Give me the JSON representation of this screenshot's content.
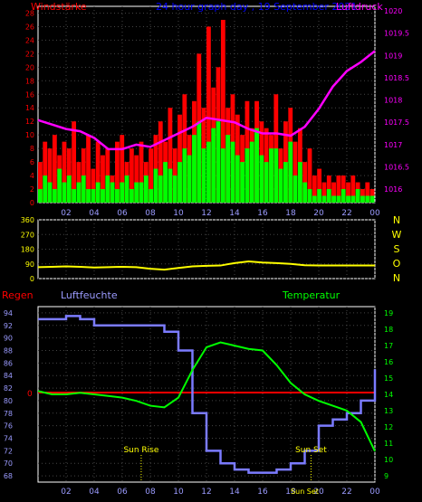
{
  "colors": {
    "bg": "#000000",
    "frame": "#ffffff",
    "grid": "#444444",
    "wind": "#ff0000",
    "gust": "#00ff00",
    "pressure": "#ff00ff",
    "direction": "#ffff00",
    "humidity": "#7b7bff",
    "temperature": "#00ff00",
    "rain": "#ff0000",
    "label_red": "#ff0000",
    "label_blue": "#0000ff",
    "label_green": "#00ff00",
    "label_magenta": "#ff00ff",
    "label_yellow": "#ffff00",
    "label_lightblue": "#9b9bff"
  },
  "chart_data": [
    {
      "type": "bar",
      "title": "24 hour graph day , 19 September 2021",
      "left_label": "Windstärke",
      "right_label": "Luftdruck",
      "x_ticks": [
        "02",
        "04",
        "06",
        "08",
        "10",
        "12",
        "14",
        "16",
        "18",
        "20",
        "22",
        "00"
      ],
      "y_left_ticks": [
        "0",
        "2",
        "4",
        "6",
        "8",
        "10",
        "12",
        "14",
        "16",
        "18",
        "20",
        "22",
        "24",
        "26",
        "28"
      ],
      "y_left_range": [
        0,
        29
      ],
      "y_right_ticks": [
        "1016",
        "1016.5",
        "1017",
        "1017.5",
        "1018",
        "1018.5",
        "1019",
        "1019.5",
        "1020"
      ],
      "y_right_range": [
        1015.7,
        1020.1
      ],
      "grid": true,
      "series": [
        {
          "type": "bar",
          "values": [
            6,
            9,
            8,
            10,
            7,
            9,
            8,
            12,
            6,
            8,
            10,
            5,
            9,
            7,
            8,
            4,
            9,
            10,
            6,
            8,
            7,
            9,
            6,
            8,
            10,
            12,
            9,
            14,
            8,
            13,
            16,
            10,
            15,
            22,
            14,
            26,
            17,
            20,
            27,
            14,
            16,
            13,
            10,
            15,
            11,
            15,
            12,
            11,
            10,
            16,
            8,
            12,
            14,
            9,
            11,
            6,
            8,
            4,
            5,
            3,
            4,
            3,
            4,
            4,
            3,
            4,
            3,
            2,
            3,
            2
          ]
        },
        {
          "type": "bar",
          "values": [
            2,
            4,
            3,
            2,
            5,
            3,
            4,
            2,
            3,
            4,
            2,
            2,
            3,
            2,
            4,
            3,
            2,
            3,
            4,
            2,
            3,
            3,
            4,
            2,
            5,
            4,
            6,
            5,
            4,
            6,
            8,
            7,
            10,
            12,
            8,
            9,
            11,
            12,
            8,
            10,
            9,
            7,
            6,
            8,
            9,
            11,
            7,
            6,
            8,
            8,
            5,
            6,
            9,
            4,
            6,
            3,
            2,
            1,
            2,
            1,
            2,
            1,
            1,
            2,
            1,
            1,
            2,
            1,
            1,
            1
          ]
        },
        {
          "type": "line",
          "x": [
            0,
            1,
            2,
            3,
            4,
            5,
            6,
            7,
            8,
            9,
            10,
            11,
            12,
            13,
            14,
            15,
            16,
            17,
            18,
            19,
            20,
            21,
            22,
            23,
            24
          ],
          "values": [
            1017.55,
            1017.45,
            1017.35,
            1017.3,
            1017.15,
            1016.9,
            1016.9,
            1017.0,
            1016.95,
            1017.1,
            1017.25,
            1017.4,
            1017.6,
            1017.55,
            1017.5,
            1017.35,
            1017.25,
            1017.25,
            1017.2,
            1017.4,
            1017.8,
            1018.3,
            1018.65,
            1018.85,
            1019.1
          ]
        }
      ]
    },
    {
      "type": "line",
      "left_ticks": [
        "0",
        "90",
        "180",
        "270",
        "360"
      ],
      "right_labels": [
        "N",
        "W",
        "S",
        "O",
        "N"
      ],
      "y_range": [
        0,
        360
      ],
      "x_ticks": [
        "02",
        "04",
        "06",
        "08",
        "10",
        "12",
        "14",
        "16",
        "18",
        "20",
        "22",
        "00"
      ],
      "grid": true,
      "series": [
        {
          "x": [
            0,
            1,
            2,
            3,
            4,
            5,
            6,
            7,
            8,
            9,
            10,
            11,
            12,
            13,
            14,
            15,
            16,
            17,
            18,
            19,
            20,
            21,
            22,
            23,
            24
          ],
          "values": [
            70,
            72,
            75,
            72,
            68,
            70,
            72,
            70,
            60,
            55,
            65,
            75,
            78,
            80,
            95,
            105,
            98,
            95,
            90,
            82,
            80,
            80,
            80,
            80,
            80
          ]
        }
      ]
    },
    {
      "type": "line",
      "left_label": "Regen",
      "middle_label": "Luftfeuchte",
      "right_label": "Temperatur",
      "rain_tick": "0",
      "y_left_ticks": [
        "68",
        "70",
        "72",
        "74",
        "76",
        "78",
        "80",
        "82",
        "84",
        "86",
        "88",
        "90",
        "92",
        "94"
      ],
      "y_left_range": [
        67,
        95
      ],
      "y_right_ticks": [
        "9",
        "10",
        "11",
        "12",
        "13",
        "14",
        "15",
        "16",
        "17",
        "18",
        "19"
      ],
      "y_right_range": [
        8.6,
        19.4
      ],
      "x_ticks": [
        "02",
        "04",
        "06",
        "08",
        "10",
        "12",
        "14",
        "16",
        "18",
        "20",
        "22",
        "00"
      ],
      "annotations": [
        "Sun Rise",
        "Sun Set",
        "Sun Set"
      ],
      "grid": true,
      "series": [
        {
          "x": [
            0,
            1,
            2,
            3,
            4,
            5,
            6,
            7,
            8,
            9,
            10,
            11,
            12,
            13,
            14,
            15,
            16,
            17,
            18,
            19,
            20,
            21,
            22,
            23,
            24
          ],
          "values": [
            93,
            93,
            93.5,
            93,
            92,
            92,
            92,
            92,
            92,
            91,
            88,
            78,
            72,
            70,
            69,
            68.5,
            68.5,
            69,
            70,
            72,
            76,
            77,
            78,
            80,
            85
          ]
        },
        {
          "x": [
            0,
            1,
            2,
            3,
            4,
            5,
            6,
            7,
            8,
            9,
            10,
            11,
            12,
            13,
            14,
            15,
            16,
            17,
            18,
            19,
            20,
            21,
            22,
            23,
            24
          ],
          "values": [
            14.2,
            14.0,
            14.0,
            14.1,
            14.0,
            13.9,
            13.8,
            13.6,
            13.3,
            13.2,
            13.8,
            15.5,
            16.9,
            17.2,
            17.0,
            16.8,
            16.7,
            15.8,
            14.7,
            14.0,
            13.6,
            13.3,
            13.0,
            12.3,
            10.5
          ]
        }
      ]
    }
  ]
}
